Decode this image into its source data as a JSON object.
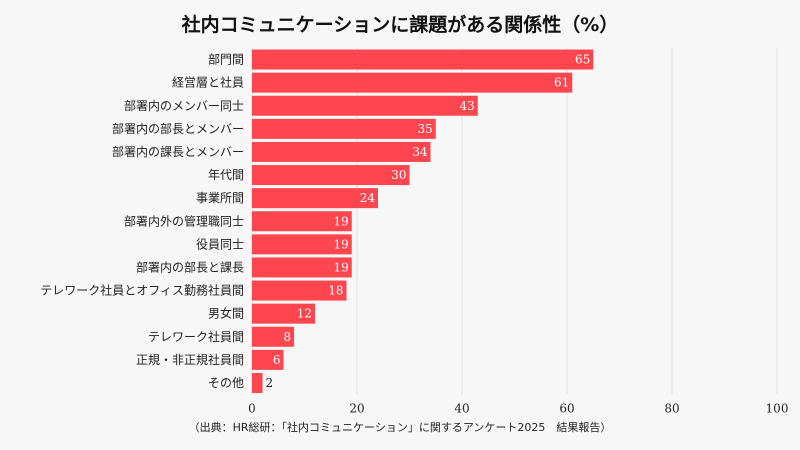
{
  "chart_data": {
    "type": "bar",
    "orientation": "horizontal",
    "title": "社内コミュニケーションに課題がある関係性（%）",
    "categories": [
      "部門間",
      "経営層と社員",
      "部署内のメンバー同士",
      "部署内の部長とメンバー",
      "部署内の課長とメンバー",
      "年代間",
      "事業所間",
      "部署内外の管理職同士",
      "役員同士",
      "部署内の部長と課長",
      "テレワーク社員とオフィス勤務社員間",
      "男女間",
      "テレワーク社員間",
      "正規・非正規社員間",
      "その他"
    ],
    "values": [
      65,
      61,
      43,
      35,
      34,
      30,
      24,
      19,
      19,
      19,
      18,
      12,
      8,
      6,
      2
    ],
    "xlim": [
      0,
      100
    ],
    "xticks": [
      0,
      20,
      40,
      60,
      80,
      100
    ],
    "grid": true,
    "bar_color": "#ff464f",
    "grid_color": "#e2e2e2"
  },
  "source": "（出典：HR総研：「社内コミュニケーション」に関するアンケート2025　結果報告）"
}
